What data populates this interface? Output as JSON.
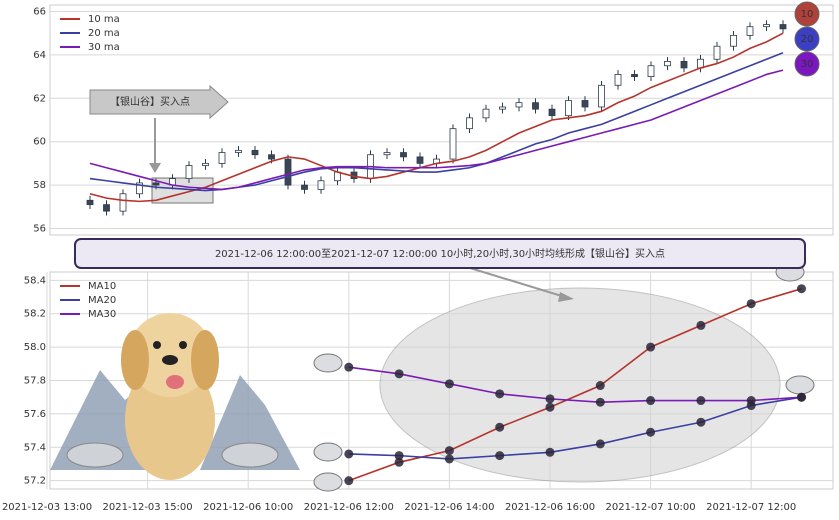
{
  "chart_data": [
    {
      "type": "candlestick",
      "open": [
        57.3,
        57.1,
        56.8,
        57.6,
        58.1,
        58.0,
        58.3,
        58.9,
        59.0,
        59.5,
        59.6,
        59.4,
        59.2,
        58.0,
        57.8,
        58.2,
        58.6,
        58.3,
        59.4,
        59.5,
        59.3,
        59.0,
        59.2,
        60.6,
        61.1,
        61.5,
        61.6,
        61.8,
        61.5,
        61.2,
        61.9,
        61.6,
        62.6,
        63.1,
        63.0,
        63.5,
        63.7,
        63.4,
        63.8,
        64.4,
        64.9,
        65.3,
        65.4
      ],
      "high": [
        57.5,
        57.3,
        57.8,
        58.3,
        58.3,
        58.5,
        59.1,
        59.2,
        59.7,
        59.8,
        59.8,
        59.6,
        59.4,
        58.2,
        58.4,
        58.8,
        58.8,
        59.6,
        59.7,
        59.7,
        59.5,
        59.4,
        60.8,
        61.3,
        61.7,
        61.8,
        62.0,
        62.0,
        61.7,
        62.1,
        62.1,
        62.8,
        63.3,
        63.3,
        63.7,
        63.9,
        63.9,
        64.0,
        64.6,
        65.1,
        65.5,
        65.6,
        65.6
      ],
      "low": [
        56.9,
        56.6,
        56.6,
        57.4,
        57.8,
        57.8,
        58.1,
        58.7,
        58.8,
        59.3,
        59.2,
        59.0,
        57.8,
        57.6,
        57.6,
        58.0,
        58.1,
        58.1,
        59.2,
        59.1,
        58.8,
        58.8,
        59.0,
        60.4,
        60.9,
        61.3,
        61.4,
        61.3,
        61.0,
        61.0,
        61.4,
        61.4,
        62.4,
        62.8,
        62.8,
        63.3,
        63.2,
        63.2,
        63.6,
        64.2,
        64.7,
        65.1,
        65.0
      ],
      "close": [
        57.1,
        56.8,
        57.6,
        58.1,
        58.0,
        58.3,
        58.9,
        59.0,
        59.5,
        59.6,
        59.4,
        59.2,
        58.0,
        57.8,
        58.2,
        58.6,
        58.3,
        59.4,
        59.5,
        59.3,
        59.0,
        59.2,
        60.6,
        61.1,
        61.5,
        61.6,
        61.8,
        61.5,
        61.2,
        61.9,
        61.6,
        62.6,
        63.1,
        63.0,
        63.5,
        63.7,
        63.4,
        63.8,
        64.4,
        64.9,
        65.3,
        65.4,
        65.2
      ],
      "series": [
        {
          "name": "10 ma",
          "color": "#b5342b",
          "values": [
            57.6,
            57.4,
            57.3,
            57.25,
            57.3,
            57.5,
            57.7,
            57.9,
            58.2,
            58.5,
            58.8,
            59.1,
            59.3,
            59.2,
            58.9,
            58.6,
            58.4,
            58.3,
            58.4,
            58.6,
            58.8,
            59.0,
            59.1,
            59.3,
            59.6,
            60.0,
            60.4,
            60.7,
            61.0,
            61.1,
            61.2,
            61.4,
            61.8,
            62.1,
            62.5,
            62.8,
            63.1,
            63.4,
            63.6,
            63.9,
            64.3,
            64.6,
            65.0
          ]
        },
        {
          "name": "20 ma",
          "color": "#3b3fa0",
          "values": [
            58.3,
            58.2,
            58.1,
            58.0,
            57.9,
            57.85,
            57.8,
            57.75,
            57.8,
            57.9,
            58.0,
            58.2,
            58.4,
            58.6,
            58.75,
            58.8,
            58.8,
            58.75,
            58.7,
            58.65,
            58.6,
            58.6,
            58.7,
            58.8,
            59.0,
            59.3,
            59.6,
            59.9,
            60.1,
            60.4,
            60.6,
            60.8,
            61.1,
            61.4,
            61.7,
            62.0,
            62.3,
            62.6,
            62.9,
            63.2,
            63.5,
            63.8,
            64.1
          ]
        },
        {
          "name": "30 ma",
          "color": "#7a1bb5",
          "values": [
            59.0,
            58.8,
            58.6,
            58.4,
            58.2,
            58.0,
            57.9,
            57.85,
            57.8,
            57.9,
            58.1,
            58.3,
            58.5,
            58.7,
            58.8,
            58.85,
            58.85,
            58.85,
            58.8,
            58.8,
            58.8,
            58.8,
            58.85,
            58.9,
            59.0,
            59.2,
            59.4,
            59.6,
            59.8,
            60.0,
            60.2,
            60.4,
            60.6,
            60.8,
            61.0,
            61.3,
            61.6,
            61.9,
            62.2,
            62.5,
            62.8,
            63.1,
            63.3
          ]
        }
      ],
      "ylim": [
        55.7,
        66.3
      ],
      "yticks": [
        56,
        58,
        60,
        62,
        64,
        66
      ],
      "grid": true,
      "legend": "upper-left",
      "annotation": "【银山谷】买入点",
      "badges": [
        {
          "label": "10",
          "color": "#b0403a"
        },
        {
          "label": "20",
          "color": "#3c3fc4"
        },
        {
          "label": "30",
          "color": "#7b16c0"
        }
      ]
    },
    {
      "type": "line",
      "title": "2021-12-06 12:00:00至2021-12-07 12:00:00 10小时,20小时,30小时均线形成【银山谷】买入点",
      "categories": [
        "2021-12-03 13:00",
        null,
        "2021-12-03 15:00",
        null,
        "2021-12-06 10:00",
        null,
        "2021-12-06 12:00",
        null,
        "2021-12-06 14:00",
        null,
        "2021-12-06 16:00",
        null,
        "2021-12-07 10:00",
        null,
        "2021-12-07 12:00",
        null
      ],
      "series": [
        {
          "name": "MA10",
          "color": "#b5342b",
          "values": [
            null,
            null,
            null,
            null,
            null,
            null,
            57.2,
            57.31,
            57.38,
            57.52,
            57.64,
            57.77,
            58.0,
            58.13,
            58.26,
            58.35
          ]
        },
        {
          "name": "MA20",
          "color": "#3b3fa0",
          "values": [
            null,
            null,
            null,
            null,
            null,
            null,
            57.36,
            57.35,
            57.33,
            57.35,
            57.37,
            57.42,
            57.49,
            57.55,
            57.65,
            57.7
          ]
        },
        {
          "name": "MA30",
          "color": "#7a1bb5",
          "values": [
            null,
            null,
            null,
            null,
            null,
            null,
            57.88,
            57.84,
            57.78,
            57.72,
            57.69,
            57.67,
            57.68,
            57.68,
            57.68,
            57.7
          ]
        }
      ],
      "ylim": [
        57.15,
        58.45
      ],
      "yticks": [
        57.2,
        57.4,
        57.6,
        57.8,
        {
          "value": 58,
          "label": "58.0"
        },
        58.2,
        58.4
      ],
      "grid": true,
      "legend": "upper-left"
    }
  ]
}
